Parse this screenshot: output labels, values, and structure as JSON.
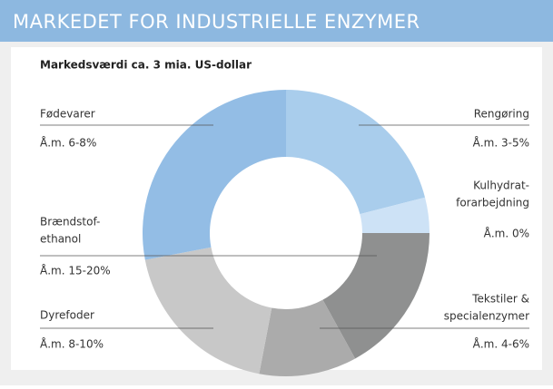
{
  "chart_data": {
    "type": "donut",
    "title": "MARKEDET FOR INDUSTRIELLE ENZYMER",
    "subtitle": "Markedsværdi ca. 3 mia. US-dollar",
    "series": [
      {
        "name": [
          "Rengøring"
        ],
        "growth": "Å.m. 3-5%",
        "value": 21,
        "color": "#a9cdec"
      },
      {
        "name": [
          "Kulhydrat-",
          "forarbejdning"
        ],
        "growth": "Å.m. 0%",
        "value": 4,
        "color": "#cde2f6"
      },
      {
        "name": [
          "Brændstof-",
          "ethanol"
        ],
        "growth": "Å.m. 15-20%",
        "value": 17,
        "color": "#8f9090"
      },
      {
        "name": [
          "Tekstiler &",
          "specialenzymer"
        ],
        "growth": "Å.m. 4-6%",
        "value": 11,
        "color": "#ababab"
      },
      {
        "name": [
          "Dyrefoder"
        ],
        "growth": "Å.m. 8-10%",
        "value": 19,
        "color": "#c8c8c8"
      },
      {
        "name": [
          "Fødevarer"
        ],
        "growth": "Å.m. 6-8%",
        "value": 28,
        "color": "#93bde5"
      }
    ]
  }
}
